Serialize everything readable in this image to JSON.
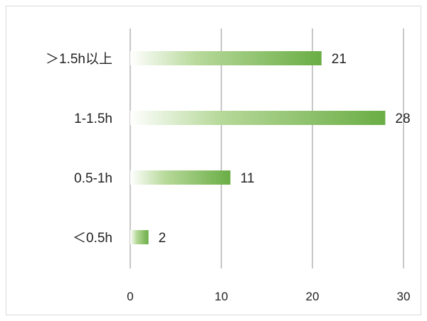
{
  "chart_data": {
    "type": "bar",
    "orientation": "horizontal",
    "title": "",
    "xlabel": "",
    "ylabel": "",
    "categories": [
      "＞1.5h以上",
      "1-1.5h",
      "0.5-1h",
      "＜0.5h"
    ],
    "values": [
      21,
      28,
      11,
      2
    ],
    "xlim": [
      0,
      30
    ],
    "xticks": [
      "0",
      "10",
      "20",
      "30"
    ],
    "grid": true,
    "legend": "none",
    "colors": {
      "bar_start": "#ffffff",
      "bar_end": "#6aad45",
      "grid": "#c8c8c8",
      "frame": "#d9d9d9"
    }
  }
}
